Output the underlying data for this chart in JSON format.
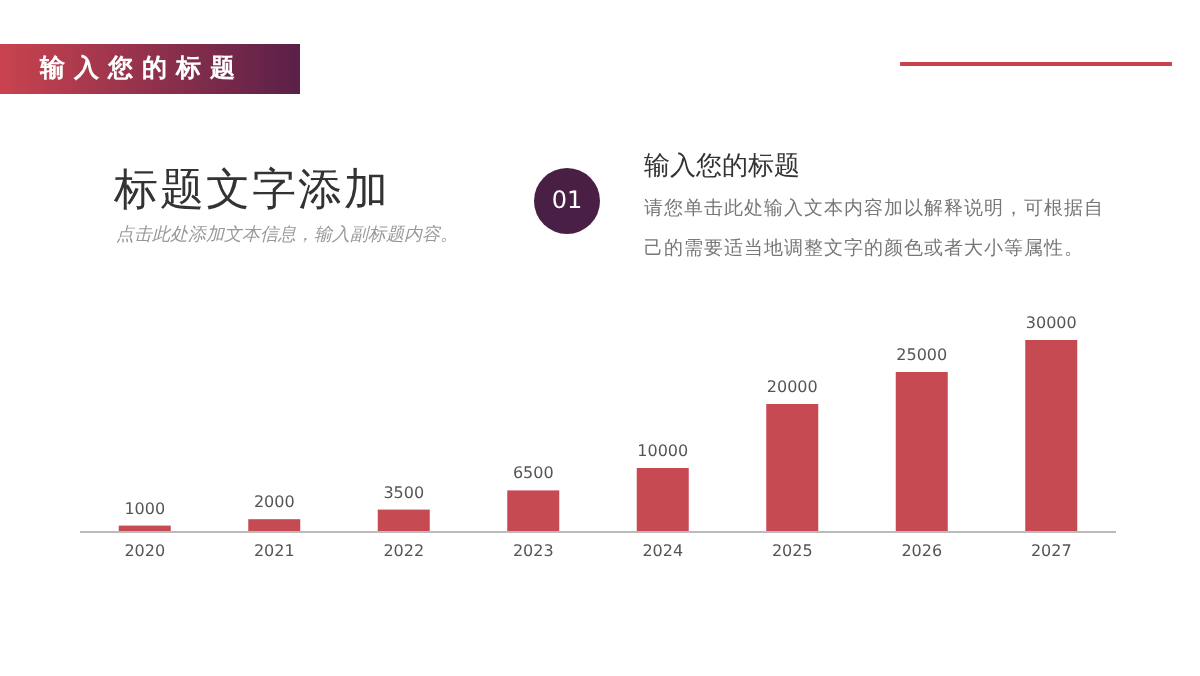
{
  "chart_data": {
    "type": "bar",
    "title": "标题文字添加",
    "subtitle": "点击此处添加文本信息，输入副标题内容。",
    "annotations": [
      "输入您的标题",
      "01",
      "输入您的标题",
      "请您单击此处输入文本内容加以解释说明，可根据自己的需要适当地调整文字的颜色或者大小等属性。"
    ],
    "categories": [
      "2020",
      "2021",
      "2022",
      "2023",
      "2024",
      "2025",
      "2026",
      "2027"
    ],
    "values": [
      1000,
      2000,
      3500,
      6500,
      10000,
      20000,
      25000,
      30000
    ],
    "color": "#c64a52",
    "data_labels": true
  }
}
